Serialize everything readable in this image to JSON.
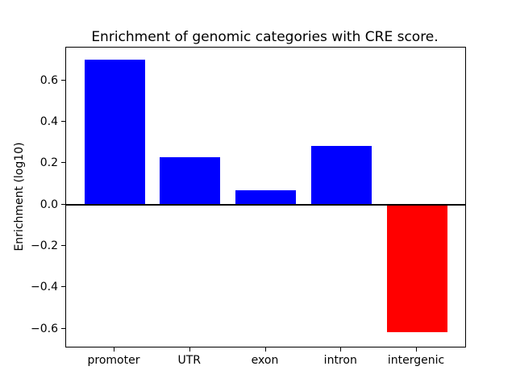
{
  "chart_data": {
    "type": "bar",
    "title": "Enrichment of genomic categories with CRE score.",
    "xlabel": "",
    "ylabel": "Enrichment (log10)",
    "categories": [
      "promoter",
      "UTR",
      "exon",
      "intron",
      "intergenic"
    ],
    "values": [
      0.7,
      0.23,
      0.07,
      0.285,
      -0.615
    ],
    "bar_colors": [
      "#0000ff",
      "#0000ff",
      "#0000ff",
      "#0000ff",
      "#ff0000"
    ],
    "positive_color": "#0000ff",
    "negative_color": "#ff0000",
    "yticks": [
      {
        "value": 0.6,
        "label": "0.6"
      },
      {
        "value": 0.4,
        "label": "0.4"
      },
      {
        "value": 0.2,
        "label": "0.2"
      },
      {
        "value": 0.0,
        "label": "0.0"
      },
      {
        "value": -0.2,
        "label": "−0.2"
      },
      {
        "value": -0.4,
        "label": "−0.4"
      },
      {
        "value": -0.6,
        "label": "−0.6"
      }
    ],
    "ylim": [
      -0.687,
      0.759
    ],
    "xlim": [
      -0.64,
      4.64
    ],
    "bar_width_units": 0.8,
    "zero_line": true,
    "grid": false,
    "legend": null,
    "axis_color": "#000000"
  }
}
